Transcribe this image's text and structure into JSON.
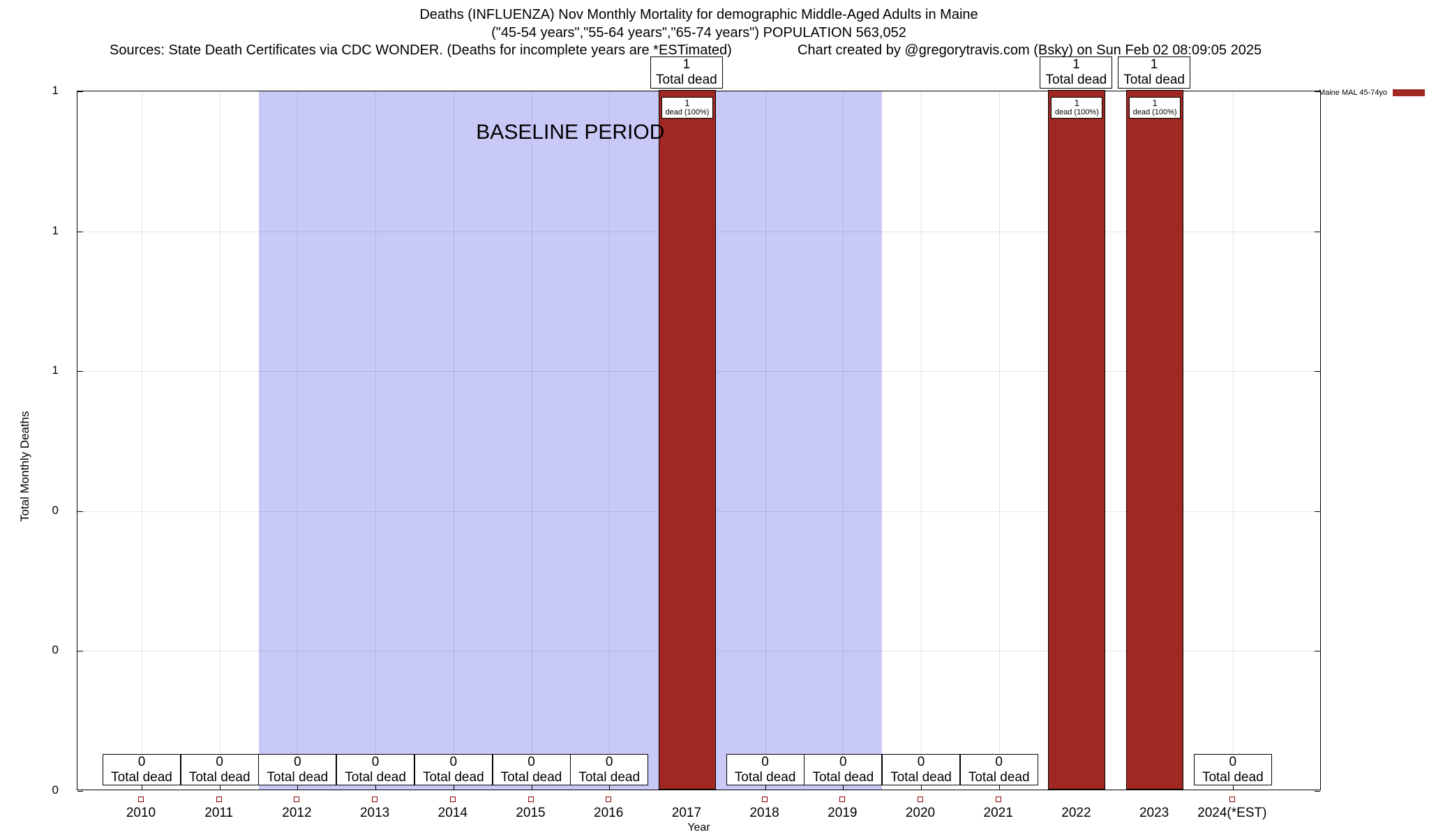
{
  "title": {
    "line1": "Deaths (INFLUENZA) Nov Monthly Mortality for demographic Middle-Aged Adults in Maine",
    "line2": "(\"45-54 years\",\"55-64 years\",\"65-74 years\") POPULATION 563,052",
    "sources": "Sources: State Death Certificates via CDC WONDER. (Deaths for incomplete years are *ESTimated)",
    "credit": "Chart created by @gregorytravis.com (Bsky) on Sun Feb 02 08:09:05 2025"
  },
  "axis": {
    "ylabel": "Total Monthly Deaths",
    "xlabel": "Year"
  },
  "legend": {
    "label": "Maine MAL 45-74yo",
    "color": "#a12822"
  },
  "chart_data": {
    "type": "bar",
    "title": "Deaths (INFLUENZA) Nov Monthly Mortality for demographic Middle-Aged Adults in Maine",
    "series_name": "Maine MAL 45-74yo",
    "categories": [
      "2010",
      "2011",
      "2012",
      "2013",
      "2014",
      "2015",
      "2016",
      "2017",
      "2018",
      "2019",
      "2020",
      "2021",
      "2022",
      "2023",
      "2024(*EST)"
    ],
    "values": [
      0,
      0,
      0,
      0,
      0,
      0,
      0,
      1,
      0,
      0,
      0,
      0,
      1,
      1,
      0
    ],
    "xlabel": "Year",
    "ylabel": "Total Monthly Deaths",
    "ylim": [
      0,
      1
    ],
    "ytick_labels_top_to_bottom": [
      "1",
      "1",
      "1",
      "0",
      "0",
      "0"
    ],
    "grid": true,
    "legend_position": "top-right",
    "bar_color": "#a12822",
    "baseline_region": {
      "label": "BASELINE PERIOD",
      "from": "2012",
      "to": "2019",
      "color": "#c9c9f8"
    },
    "annotations": {
      "bar_top_box": {
        "value": "1",
        "label": "Total dead"
      },
      "bar_inner_box": {
        "value": "1",
        "label": "dead (100%)"
      },
      "zero_box": {
        "value": "0",
        "label": "Total dead"
      }
    }
  }
}
